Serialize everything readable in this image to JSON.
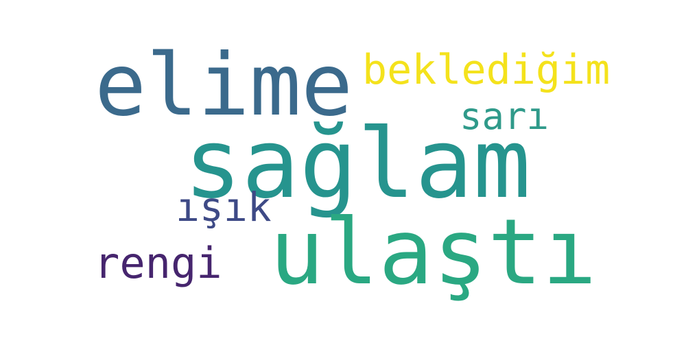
{
  "words": [
    {
      "id": "elime",
      "text": "elime",
      "color": "#3b6a8c"
    },
    {
      "id": "bekledigim",
      "text": "beklediğim",
      "color": "#f4e21c"
    },
    {
      "id": "sari",
      "text": "sarı",
      "color": "#2f9a8a"
    },
    {
      "id": "saglam",
      "text": "sağlam",
      "color": "#26948e"
    },
    {
      "id": "isik",
      "text": "ışık",
      "color": "#3e4a86"
    },
    {
      "id": "ulasti",
      "text": "ulaştı",
      "color": "#2aa882"
    },
    {
      "id": "rengi",
      "text": "rengi",
      "color": "#46256e"
    }
  ]
}
